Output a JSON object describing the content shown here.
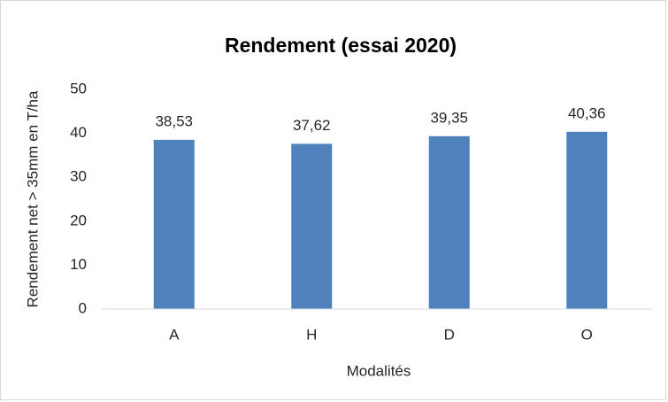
{
  "chart_data": {
    "type": "bar",
    "title": "Rendement (essai 2020)",
    "x_label": "Modalités",
    "y_label": "Rendement net > 35mm en T/ha",
    "categories": [
      "A",
      "H",
      "D",
      "O"
    ],
    "values": [
      38.53,
      37.62,
      39.35,
      40.36
    ],
    "value_labels": [
      "38,53",
      "37,62",
      "39,35",
      "40,36"
    ],
    "color": "#4f81bd",
    "ylim": [
      0,
      50
    ],
    "yticks": [
      0,
      10,
      20,
      30,
      40,
      50
    ],
    "grid": false
  }
}
